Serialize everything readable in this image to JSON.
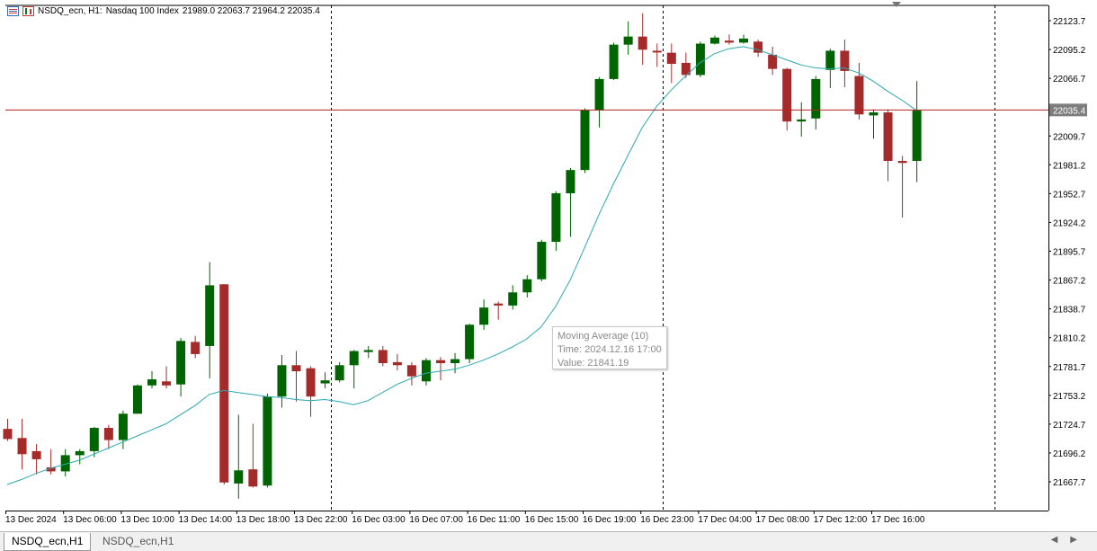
{
  "window": {
    "symbol_label": "NSDQ_ecn, H1:",
    "instrument": "Nasdaq 100 Index",
    "ohlc_text": "21989.0 22063.7 21964.2 22035.4"
  },
  "tooltip": {
    "line1": "Moving Average (10)",
    "line2": "Time: 2024.12.16 17:00",
    "line3": "Value: 21841.19"
  },
  "tabs": {
    "active": "NSDQ_ecn,H1",
    "inactive": "NSDQ_ecn,H1"
  },
  "icons": {
    "symbol": "chart-bars-icon",
    "type": "candles-icon",
    "scroll_left": "arrow-left-icon",
    "scroll_right": "arrow-right-icon"
  },
  "colors": {
    "bull": "#006400",
    "bear": "#a52a2a",
    "ma": "#2aa8b0",
    "price_line": "#b22222",
    "grid": "#000000"
  },
  "chart_data": {
    "type": "candlestick",
    "timeframe": "H1",
    "y_ticks": [
      21667.7,
      21696.2,
      21724.7,
      21753.2,
      21781.7,
      21810.2,
      21838.7,
      21867.2,
      21895.7,
      21924.2,
      21952.7,
      21981.2,
      22009.7,
      22035.4,
      22066.7,
      22095.2,
      22123.7
    ],
    "ylim": [
      21636.0,
      22150.0
    ],
    "current_price": 22035.4,
    "x_labels": [
      "13 Dec 2024",
      "13 Dec 06:00",
      "13 Dec 10:00",
      "13 Dec 14:00",
      "13 Dec 18:00",
      "13 Dec 22:00",
      "16 Dec 03:00",
      "16 Dec 07:00",
      "16 Dec 11:00",
      "16 Dec 15:00",
      "16 Dec 19:00",
      "16 Dec 23:00",
      "17 Dec 04:00",
      "17 Dec 08:00",
      "17 Dec 12:00",
      "17 Dec 16:00"
    ],
    "day_separator_bars": [
      22,
      45,
      68
    ],
    "candles": [
      {
        "o": 21720.0,
        "h": 21730.0,
        "l": 21708.0,
        "c": 21710.0
      },
      {
        "o": 21711.0,
        "h": 21730.0,
        "l": 21680.0,
        "c": 21695.0
      },
      {
        "o": 21698.0,
        "h": 21705.0,
        "l": 21675.0,
        "c": 21690.0
      },
      {
        "o": 21682.0,
        "h": 21700.0,
        "l": 21675.0,
        "c": 21678.0
      },
      {
        "o": 21678.0,
        "h": 21700.0,
        "l": 21673.0,
        "c": 21694.0
      },
      {
        "o": 21694.0,
        "h": 21700.0,
        "l": 21685.0,
        "c": 21698.0
      },
      {
        "o": 21698.0,
        "h": 21722.0,
        "l": 21692.0,
        "c": 21721.0
      },
      {
        "o": 21721.0,
        "h": 21724.0,
        "l": 21700.0,
        "c": 21709.0
      },
      {
        "o": 21709.0,
        "h": 21738.0,
        "l": 21700.0,
        "c": 21735.0
      },
      {
        "o": 21735.0,
        "h": 21764.0,
        "l": 21735.0,
        "c": 21763.0
      },
      {
        "o": 21763.0,
        "h": 21777.0,
        "l": 21760.0,
        "c": 21769.0
      },
      {
        "o": 21767.0,
        "h": 21782.0,
        "l": 21760.0,
        "c": 21763.0
      },
      {
        "o": 21764.0,
        "h": 21810.0,
        "l": 21752.0,
        "c": 21807.0
      },
      {
        "o": 21806.0,
        "h": 21812.0,
        "l": 21790.0,
        "c": 21794.0
      },
      {
        "o": 21802.0,
        "h": 21885.0,
        "l": 21770.0,
        "c": 21862.0
      },
      {
        "o": 21863.0,
        "h": 21862.0,
        "l": 21665.0,
        "c": 21667.0
      },
      {
        "o": 21666.0,
        "h": 21734.0,
        "l": 21651.0,
        "c": 21679.0
      },
      {
        "o": 21680.0,
        "h": 21725.0,
        "l": 21662.0,
        "c": 21663.0
      },
      {
        "o": 21664.0,
        "h": 21755.0,
        "l": 21662.0,
        "c": 21752.0
      },
      {
        "o": 21752.0,
        "h": 21793.0,
        "l": 21741.0,
        "c": 21783.0
      },
      {
        "o": 21783.0,
        "h": 21797.0,
        "l": 21747.0,
        "c": 21777.0
      },
      {
        "o": 21780.0,
        "h": 21782.0,
        "l": 21732.0,
        "c": 21752.0
      },
      {
        "o": 21765.0,
        "h": 21776.0,
        "l": 21760.0,
        "c": 21768.0
      },
      {
        "o": 21768.0,
        "h": 21786.0,
        "l": 21766.0,
        "c": 21783.0
      },
      {
        "o": 21783.0,
        "h": 21798.0,
        "l": 21760.0,
        "c": 21797.0
      },
      {
        "o": 21796.0,
        "h": 21802.0,
        "l": 21790.0,
        "c": 21798.0
      },
      {
        "o": 21798.0,
        "h": 21802.0,
        "l": 21782.0,
        "c": 21785.0
      },
      {
        "o": 21786.0,
        "h": 21794.0,
        "l": 21778.0,
        "c": 21783.0
      },
      {
        "o": 21783.0,
        "h": 21786.0,
        "l": 21763.0,
        "c": 21772.0
      },
      {
        "o": 21767.0,
        "h": 21790.0,
        "l": 21763.0,
        "c": 21788.0
      },
      {
        "o": 21788.0,
        "h": 21791.0,
        "l": 21768.0,
        "c": 21785.0
      },
      {
        "o": 21785.0,
        "h": 21795.0,
        "l": 21775.0,
        "c": 21789.0
      },
      {
        "o": 21789.0,
        "h": 21824.0,
        "l": 21785.0,
        "c": 21823.0
      },
      {
        "o": 21823.0,
        "h": 21848.0,
        "l": 21818.0,
        "c": 21840.0
      },
      {
        "o": 21844.0,
        "h": 21846.0,
        "l": 21828.0,
        "c": 21842.0
      },
      {
        "o": 21842.0,
        "h": 21862.0,
        "l": 21838.0,
        "c": 21855.0
      },
      {
        "o": 21855.0,
        "h": 21872.0,
        "l": 21850.0,
        "c": 21868.0
      },
      {
        "o": 21868.0,
        "h": 21907.0,
        "l": 21866.0,
        "c": 21905.0
      },
      {
        "o": 21905.0,
        "h": 21955.0,
        "l": 21896.0,
        "c": 21953.0
      },
      {
        "o": 21953.0,
        "h": 21978.0,
        "l": 21910.0,
        "c": 21976.0
      },
      {
        "o": 21976.0,
        "h": 22037.0,
        "l": 21973.0,
        "c": 22035.0
      },
      {
        "o": 22035.0,
        "h": 22068.0,
        "l": 22018.0,
        "c": 22066.0
      },
      {
        "o": 22066.0,
        "h": 22102.0,
        "l": 22065.0,
        "c": 22100.0
      },
      {
        "o": 22100.0,
        "h": 22123.0,
        "l": 22090.0,
        "c": 22108.0
      },
      {
        "o": 22108.0,
        "h": 22131.0,
        "l": 22080.0,
        "c": 22095.0
      },
      {
        "o": 22094.0,
        "h": 22101.0,
        "l": 22078.0,
        "c": 22093.0
      },
      {
        "o": 22092.0,
        "h": 22101.0,
        "l": 22062.0,
        "c": 22081.0
      },
      {
        "o": 22082.0,
        "h": 22092.0,
        "l": 22067.0,
        "c": 22070.0
      },
      {
        "o": 22070.0,
        "h": 22103.0,
        "l": 22068.0,
        "c": 22101.0
      },
      {
        "o": 22101.0,
        "h": 22109.0,
        "l": 22100.0,
        "c": 22107.0
      },
      {
        "o": 22104.0,
        "h": 22110.0,
        "l": 22100.0,
        "c": 22102.0
      },
      {
        "o": 22102.0,
        "h": 22110.0,
        "l": 22101.0,
        "c": 22106.0
      },
      {
        "o": 22103.0,
        "h": 22105.0,
        "l": 22088.0,
        "c": 22092.0
      },
      {
        "o": 22090.0,
        "h": 22098.0,
        "l": 22070.0,
        "c": 22076.0
      },
      {
        "o": 22076.0,
        "h": 22077.0,
        "l": 22015.0,
        "c": 22024.0
      },
      {
        "o": 22024.0,
        "h": 22043.0,
        "l": 22009.0,
        "c": 22026.0
      },
      {
        "o": 22027.0,
        "h": 22069.0,
        "l": 22016.0,
        "c": 22066.0
      },
      {
        "o": 22075.0,
        "h": 22096.0,
        "l": 22057.0,
        "c": 22094.0
      },
      {
        "o": 22094.0,
        "h": 22105.0,
        "l": 22058.0,
        "c": 22074.0
      },
      {
        "o": 22069.0,
        "h": 22082.0,
        "l": 22026.0,
        "c": 22031.0
      },
      {
        "o": 22030.0,
        "h": 22036.0,
        "l": 22007.0,
        "c": 22033.0
      },
      {
        "o": 22033.0,
        "h": 22036.0,
        "l": 21965.0,
        "c": 21985.0
      },
      {
        "o": 21985.0,
        "h": 21990.0,
        "l": 21929.0,
        "c": 21983.0
      },
      {
        "o": 21985.0,
        "h": 22064.0,
        "l": 21964.0,
        "c": 22035.0
      }
    ],
    "moving_average": {
      "name": "Moving Average (10)",
      "values": [
        21665.0,
        21670.0,
        21676.0,
        21681.0,
        21685.0,
        21689.0,
        21695.0,
        21701.0,
        21707.0,
        21713.0,
        21719.0,
        21725.0,
        21734.0,
        21743.0,
        21754.0,
        21758.0,
        21756.0,
        21754.0,
        21752.0,
        21751.0,
        21749.0,
        21748.0,
        21749.0,
        21747.0,
        21744.0,
        21748.0,
        21756.0,
        21764.0,
        21770.0,
        21775.0,
        21777.0,
        21779.0,
        21783.0,
        21788.0,
        21794.0,
        21801.0,
        21809.0,
        21821.0,
        21841.0,
        21867.0,
        21899.0,
        21932.0,
        21962.0,
        21990.0,
        22018.0,
        22039.0,
        22055.0,
        22069.0,
        22082.0,
        22091.0,
        22096.0,
        22098.0,
        22095.0,
        22090.0,
        22085.0,
        22080.0,
        22077.0,
        22076.0,
        22077.0,
        22072.0,
        22064.0,
        22054.0,
        22045.0,
        22035.0
      ]
    }
  }
}
